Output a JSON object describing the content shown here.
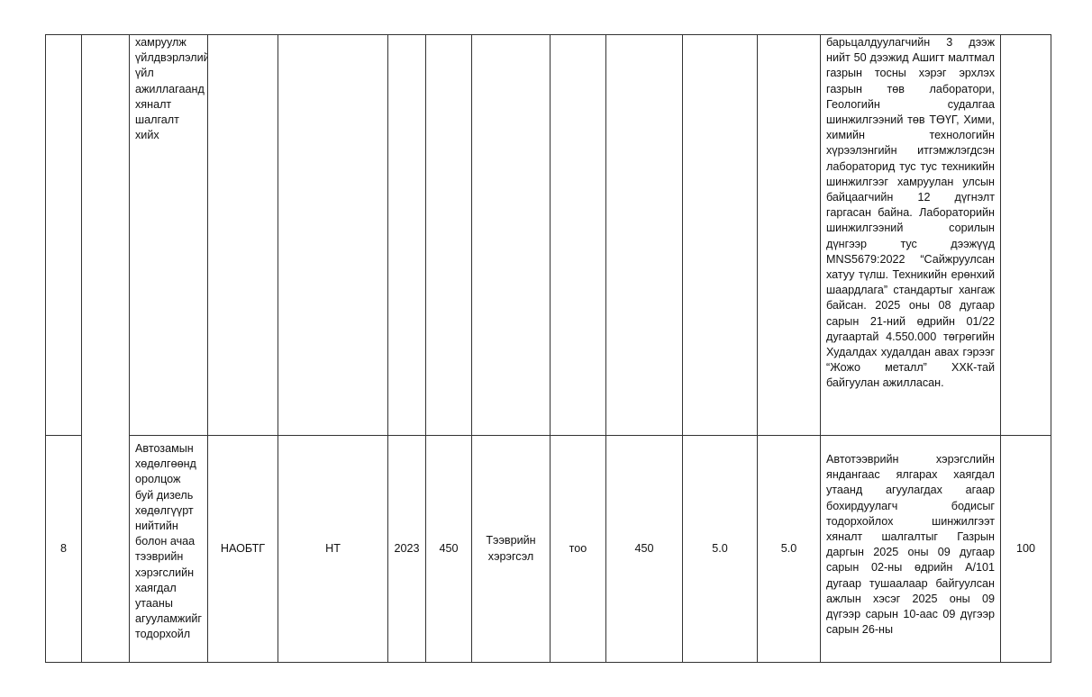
{
  "table": {
    "rows": [
      {
        "no": "",
        "col2": "",
        "activity": "хамруулж үйлдвэрлэлийн үйл ажиллагаанд хяналт шалгалт хийх",
        "org": "",
        "type": "",
        "year": "",
        "baseline": "",
        "unit_name": "",
        "unit": "",
        "target": "",
        "plan_pct": "",
        "actual_pct": "",
        "result": "барьцалдуулагчийн 3 дээж нийт 50 дээжид Ашигт малтмал газрын тосны хэрэг эрхлэх газрын төв лаборатори, Геологийн судалгаа шинжилгээний төв ТӨҮГ, Хими, химийн технологийн хүрээлэнгийн итгэмжлэгдсэн лабораторид тус тус техникийн шинжилгээг хамруулан улсын байцаагчийн 12 дүгнэлт гаргасан байна. Лабораторийн шинжилгээний сорилын дүнгээр тус дээжүүд MNS5679:2022 “Сайжруулсан хатуу түлш. Техникийн ерөнхий шаардлага” стандартыг хангаж байсан. 2025 оны 08 дугаар сарын 21-ний өдрийн 01/22 дугаартай 4.550.000 төгрөгийн Худалдах худалдан авах гэрээг “Жожо металл” ХХК-тай байгуулан ажилласан.",
        "score": ""
      },
      {
        "no": "8",
        "activity": "Автозамын хөдөлгөөнд оролцож буй дизель хөдөлгүүрт нийтийн болон ачаа тээврийн хэрэгслийн хаягдал утааны агууламжийг тодорхойл",
        "org": "НАОБТГ",
        "type": "НТ",
        "year": "2023",
        "baseline": "450",
        "unit_name": "Тээврийн хэрэгсэл",
        "unit": "тоо",
        "target": "450",
        "plan_pct": "5.0",
        "actual_pct": "5.0",
        "result": "Автотээврийн хэрэгслийн яндангаас ялгарах хаягдал утаанд агуулагдах агаар бохирдуулагч бодисыг тодорхойлох шинжилгээт хяналт шалгалтыг Газрын даргын 2025 оны 09 дугаар сарын 02-ны өдрийн А/101 дугаар тушаалаар байгуулсан ажлын хэсэг 2025 оны 09 дүгээр сарын 10-аас 09 дүгээр сарын 26-ны",
        "score": "100"
      }
    ]
  }
}
